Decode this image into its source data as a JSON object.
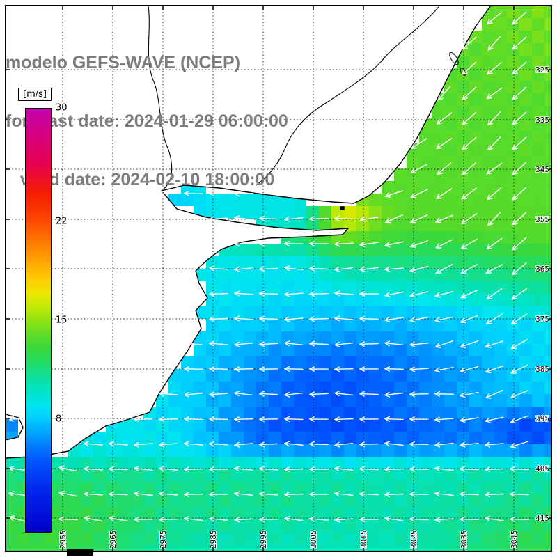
{
  "title": {
    "line1": "modelo GEFS-WAVE (NCEP)",
    "line2": "forecast date: 2024-01-29 06:00:00",
    "line3": "   valid date: 2024-02-10 18:00:00"
  },
  "colorbar": {
    "unit_label": "[m/s]",
    "min": 0,
    "max": 30,
    "ticks": [
      30,
      22,
      15,
      8
    ],
    "stops": [
      [
        0,
        "#0000cd"
      ],
      [
        3,
        "#0026ee"
      ],
      [
        5,
        "#0055ff"
      ],
      [
        6,
        "#0078ff"
      ],
      [
        7,
        "#00a2ff"
      ],
      [
        8,
        "#00ccff"
      ],
      [
        9,
        "#00e5ef"
      ],
      [
        10,
        "#00e2c6"
      ],
      [
        11,
        "#0edf9c"
      ],
      [
        12,
        "#23dc66"
      ],
      [
        13,
        "#39d83c"
      ],
      [
        14,
        "#5edc26"
      ],
      [
        15,
        "#92e311"
      ],
      [
        16,
        "#c3ea04"
      ],
      [
        17,
        "#f0e400"
      ],
      [
        18,
        "#ffc900"
      ],
      [
        20,
        "#ff8a00"
      ],
      [
        22,
        "#ff4a00"
      ],
      [
        24,
        "#f51d00"
      ],
      [
        26,
        "#e6004d"
      ],
      [
        28,
        "#d8007f"
      ],
      [
        30,
        "#c400ab"
      ]
    ]
  },
  "map": {
    "right_axis_labels": [
      "325",
      "335",
      "345",
      "355",
      "365",
      "375",
      "385",
      "395",
      "405",
      "415"
    ],
    "bottom_axis_labels": [
      "2955",
      "2965",
      "2975",
      "2985",
      "2995",
      "3005",
      "3015",
      "3025",
      "3035",
      "3045"
    ],
    "colors": {
      "arrow": "#ffffff",
      "coast": "#000000",
      "grid": "#1a1a1a",
      "land": "#ffffff",
      "title_text": "#7c7c7c"
    }
  }
}
